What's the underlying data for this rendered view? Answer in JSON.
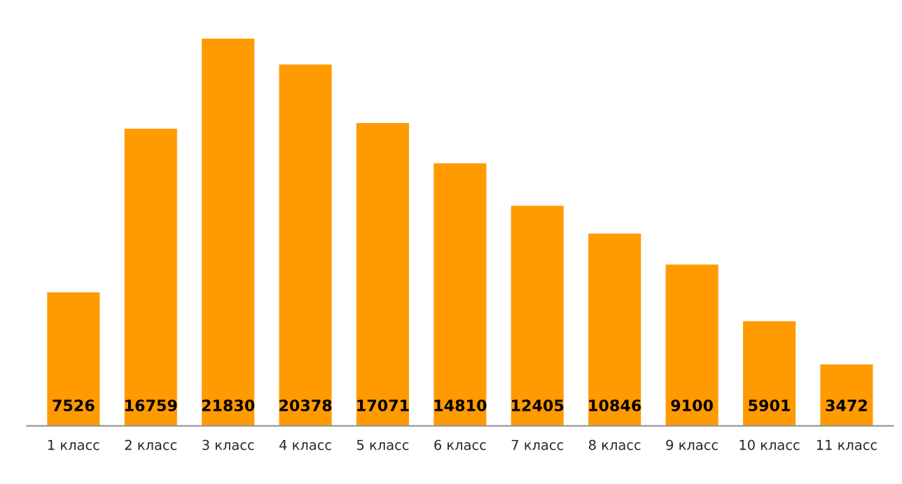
{
  "chart_data": {
    "type": "bar",
    "categories": [
      "1 класс",
      "2 класс",
      "3 класс",
      "4 класс",
      "5 класс",
      "6 класс",
      "7 класс",
      "8 класс",
      "9 класс",
      "10 класс",
      "11 класс"
    ],
    "values": [
      7526,
      16759,
      21830,
      20378,
      17071,
      14810,
      12405,
      10846,
      9100,
      5901,
      3472
    ],
    "color": "#ff9a00",
    "data_labels": true,
    "grid": false,
    "legend": false
  }
}
